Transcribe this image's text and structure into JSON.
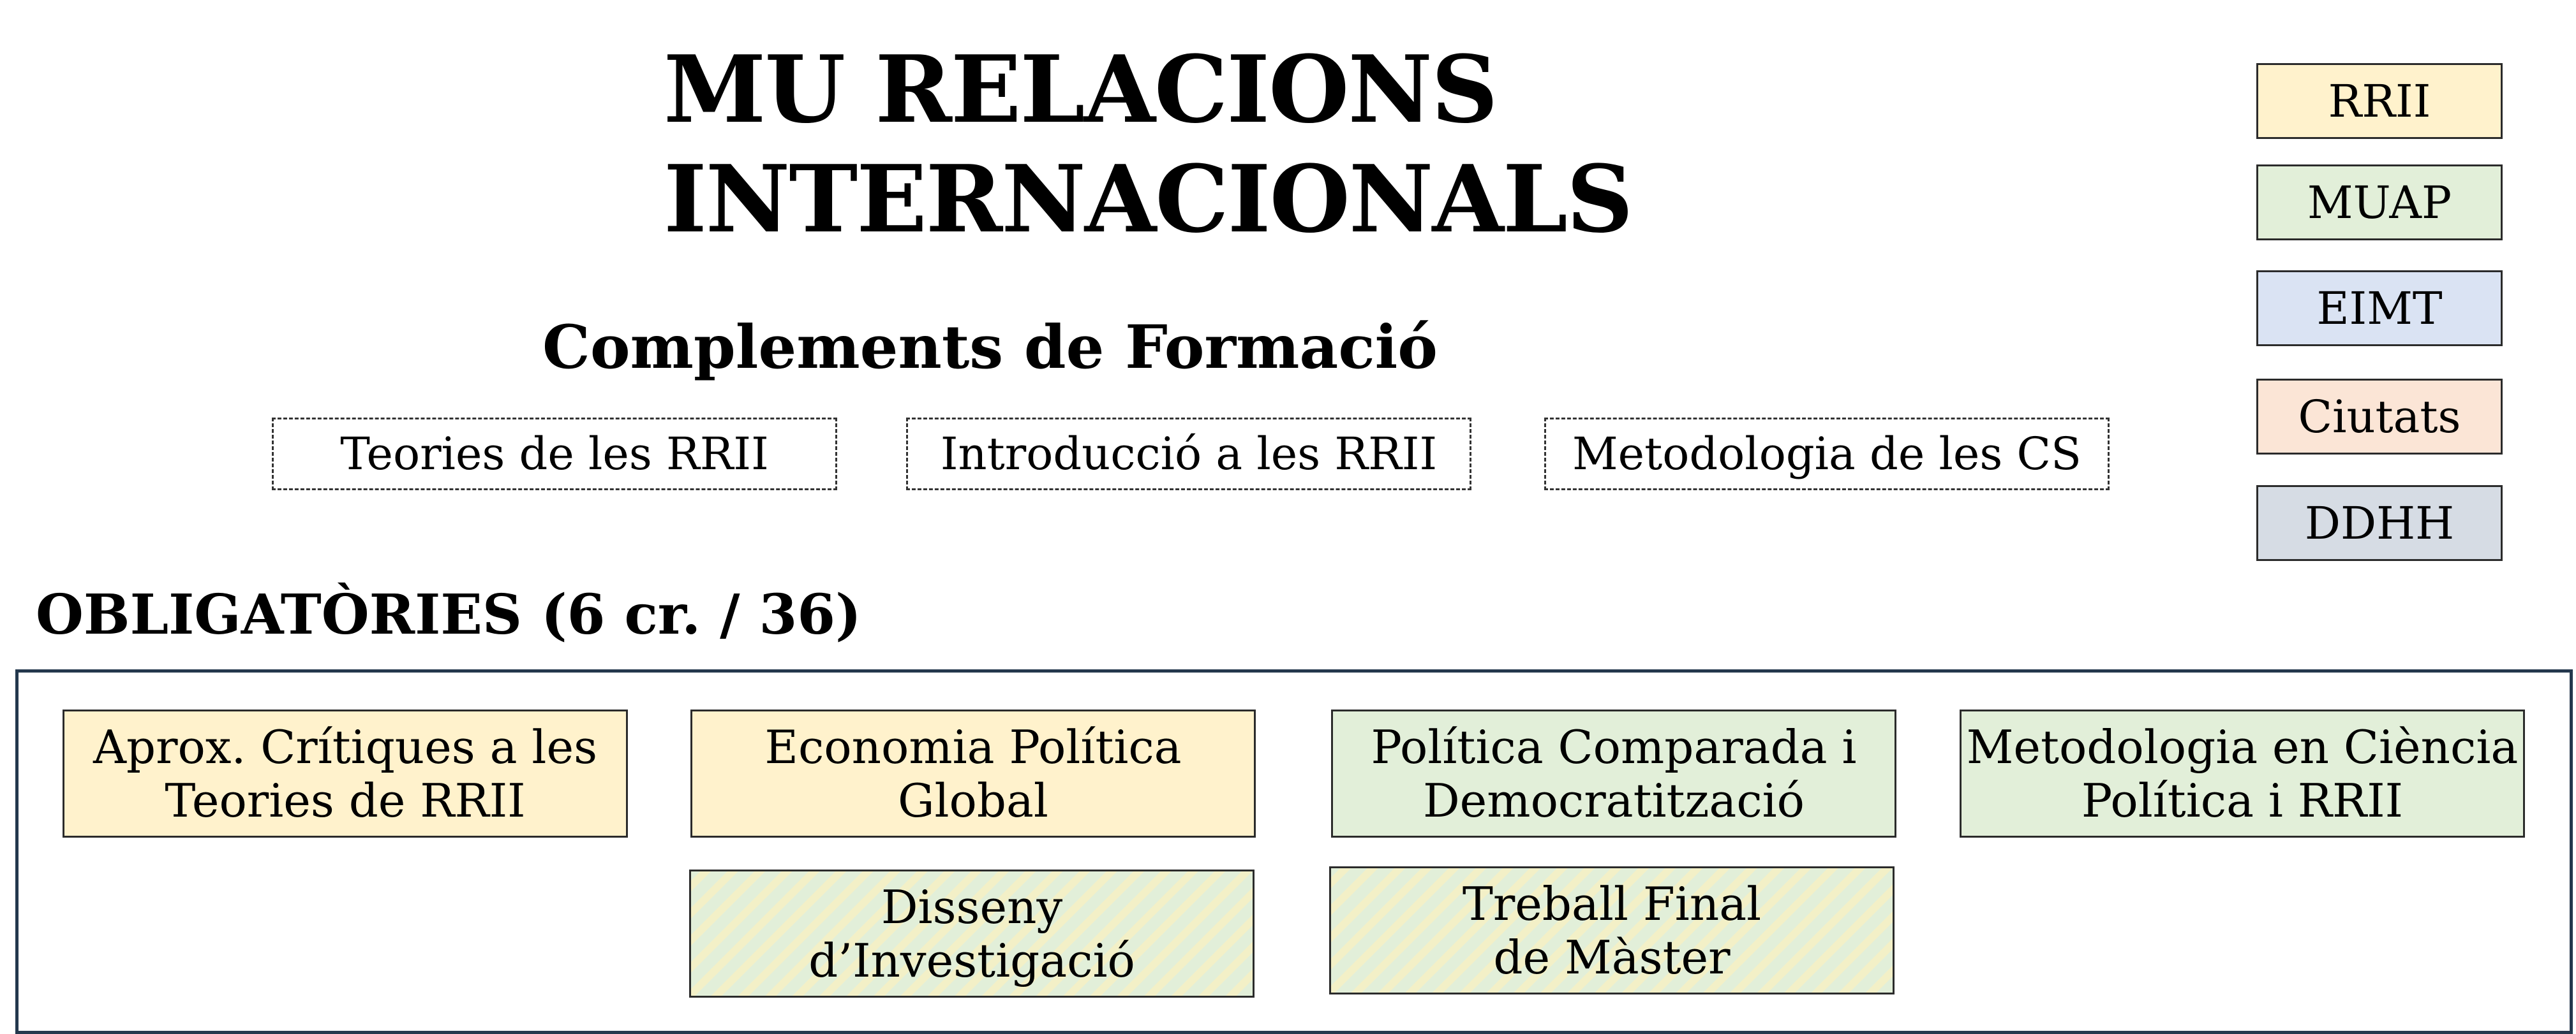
{
  "title": {
    "line1": "MU RELACIONS",
    "line2": "INTERNACIONALS"
  },
  "complements": {
    "heading": "Complements de Formació",
    "items": [
      "Teories de les RRII",
      "Introducció a les RRII",
      "Metodologia de les CS"
    ]
  },
  "legend": [
    {
      "label": "RRII",
      "color": "#fff2cc"
    },
    {
      "label": "MUAP",
      "color": "#e2efd9"
    },
    {
      "label": "EIMT",
      "color": "#dae3f3"
    },
    {
      "label": "Ciutats",
      "color": "#fbe5d6"
    },
    {
      "label": "DDHH",
      "color": "#d6dce4"
    }
  ],
  "obligatories": {
    "heading": "OBLIGATÒRIES (6 cr. / 36)",
    "courses": [
      {
        "line1": "Aprox. Crítiques a les",
        "line2": "Teories de RRII",
        "color": "#fff2cc"
      },
      {
        "line1": "Economia Política",
        "line2": "Global",
        "color": "#fff2cc"
      },
      {
        "line1": "Política Comparada i",
        "line2": "Democratització",
        "color": "#e2efd9"
      },
      {
        "line1": "Metodologia en Ciència",
        "line2": "Política i RRII",
        "color": "#e2efd9"
      },
      {
        "line1": "Disseny",
        "line2": "d’Investigació",
        "color": "#e2efd9",
        "pattern": "diagonal-stripes"
      },
      {
        "line1": "Treball Final",
        "line2": "de Màster",
        "color": "#e2efd9",
        "pattern": "diagonal-stripes"
      }
    ]
  }
}
